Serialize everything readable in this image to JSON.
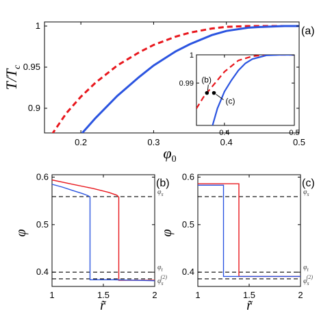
{
  "chart_data": [
    {
      "type": "line",
      "panel": "(a)",
      "xlabel": "φ0",
      "ylabel": "T/Tc",
      "xlim": [
        0.15,
        0.5
      ],
      "ylim": [
        0.87,
        1.005
      ],
      "xticks": [
        "0.2",
        "0.3",
        "0.4",
        "0.5"
      ],
      "xtick_values": [
        0.2,
        0.3,
        0.4,
        0.5
      ],
      "yticks": [
        "0.9",
        "0.95",
        "1"
      ],
      "ytick_values": [
        0.9,
        0.95,
        1.0
      ],
      "series": [
        {
          "color": "#e8171d",
          "style": "dashed",
          "x": [
            0.16,
            0.18,
            0.2,
            0.22,
            0.25,
            0.28,
            0.3,
            0.33,
            0.35,
            0.38,
            0.4,
            0.43,
            0.45,
            0.48,
            0.5
          ],
          "y": [
            0.868,
            0.894,
            0.914,
            0.931,
            0.952,
            0.968,
            0.977,
            0.987,
            0.992,
            0.997,
            0.999,
            1.0,
            1.0,
            1.0,
            1.0
          ]
        },
        {
          "color": "#2b54e0",
          "style": "solid",
          "x": [
            0.2,
            0.22,
            0.25,
            0.28,
            0.3,
            0.33,
            0.35,
            0.38,
            0.4,
            0.43,
            0.45,
            0.48,
            0.5
          ],
          "y": [
            0.868,
            0.888,
            0.915,
            0.938,
            0.952,
            0.969,
            0.978,
            0.989,
            0.994,
            0.998,
            0.999,
            1.0,
            1.0
          ]
        }
      ],
      "inset": {
        "xlim": [
          0.36,
          0.5
        ],
        "ylim": [
          0.975,
          1.0
        ],
        "xticks": [
          "0.4",
          "0.5"
        ],
        "xtick_values": [
          0.4,
          0.5
        ],
        "yticks": [
          "0.99",
          "1"
        ],
        "ytick_values": [
          0.99,
          1.0
        ],
        "series": [
          {
            "color": "#e8171d",
            "style": "dashed",
            "x": [
              0.36,
              0.37,
              0.38,
              0.39,
              0.4,
              0.42,
              0.44,
              0.46,
              0.48,
              0.5
            ],
            "y": [
              0.981,
              0.985,
              0.988,
              0.991,
              0.994,
              0.998,
              0.9995,
              1.0,
              1.0,
              1.0
            ]
          },
          {
            "color": "#2b54e0",
            "style": "solid",
            "x": [
              0.383,
              0.39,
              0.4,
              0.41,
              0.42,
              0.43,
              0.44,
              0.46,
              0.48,
              0.5
            ],
            "y": [
              0.975,
              0.981,
              0.987,
              0.991,
              0.9945,
              0.997,
              0.9985,
              0.9998,
              1.0,
              1.0
            ]
          }
        ],
        "points": [
          {
            "label": "(b)",
            "x": 0.375,
            "y": 0.9865
          },
          {
            "label": "(c)",
            "x": 0.385,
            "y": 0.9865
          }
        ]
      }
    },
    {
      "type": "line",
      "panel": "(b)",
      "xlabel": "r̃",
      "ylabel": "φ",
      "xlim": [
        1,
        2
      ],
      "ylim": [
        0.37,
        0.605
      ],
      "xticks": [
        "1",
        "1.5",
        "2"
      ],
      "xtick_values": [
        1,
        1.5,
        2
      ],
      "yticks": [
        "0.4",
        "0.5",
        "0.6"
      ],
      "ytick_values": [
        0.4,
        0.5,
        0.6
      ],
      "hlines": [
        {
          "label": "φs",
          "y": 0.559
        },
        {
          "label": "φt",
          "y": 0.4
        },
        {
          "label": "φs(2)",
          "y": 0.386
        }
      ],
      "series": [
        {
          "color": "#e8171d",
          "x": [
            1.0,
            1.2,
            1.4,
            1.55,
            1.63,
            1.65,
            1.65,
            1.66,
            1.8,
            2.0
          ],
          "y": [
            0.594,
            0.585,
            0.576,
            0.568,
            0.562,
            0.558,
            0.383,
            0.383,
            0.383,
            0.383
          ]
        },
        {
          "color": "#2b54e0",
          "x": [
            1.0,
            1.1,
            1.2,
            1.3,
            1.35,
            1.37,
            1.37,
            1.38,
            1.6,
            2.0
          ],
          "y": [
            0.585,
            0.579,
            0.572,
            0.565,
            0.561,
            0.558,
            0.384,
            0.384,
            0.384,
            0.382
          ]
        }
      ]
    },
    {
      "type": "line",
      "panel": "(c)",
      "xlabel": "r̃",
      "ylabel": "φ",
      "xlim": [
        1,
        2
      ],
      "ylim": [
        0.37,
        0.605
      ],
      "xticks": [
        "1",
        "1.5",
        "2"
      ],
      "xtick_values": [
        1,
        1.5,
        2
      ],
      "yticks": [
        "0.4",
        "0.5",
        "0.6"
      ],
      "ytick_values": [
        0.4,
        0.5,
        0.6
      ],
      "hlines": [
        {
          "label": "φs",
          "y": 0.559
        },
        {
          "label": "φt",
          "y": 0.4
        },
        {
          "label": "φs(2)",
          "y": 0.386
        }
      ],
      "series": [
        {
          "color": "#e8171d",
          "x": [
            1.0,
            1.2,
            1.4,
            1.4,
            1.6,
            2.0
          ],
          "y": [
            0.586,
            0.586,
            0.586,
            0.391,
            0.391,
            0.391
          ]
        },
        {
          "color": "#2b54e0",
          "x": [
            1.0,
            1.1,
            1.25,
            1.25,
            1.6,
            2.0
          ],
          "y": [
            0.583,
            0.583,
            0.583,
            0.391,
            0.391,
            0.391
          ]
        }
      ]
    }
  ]
}
